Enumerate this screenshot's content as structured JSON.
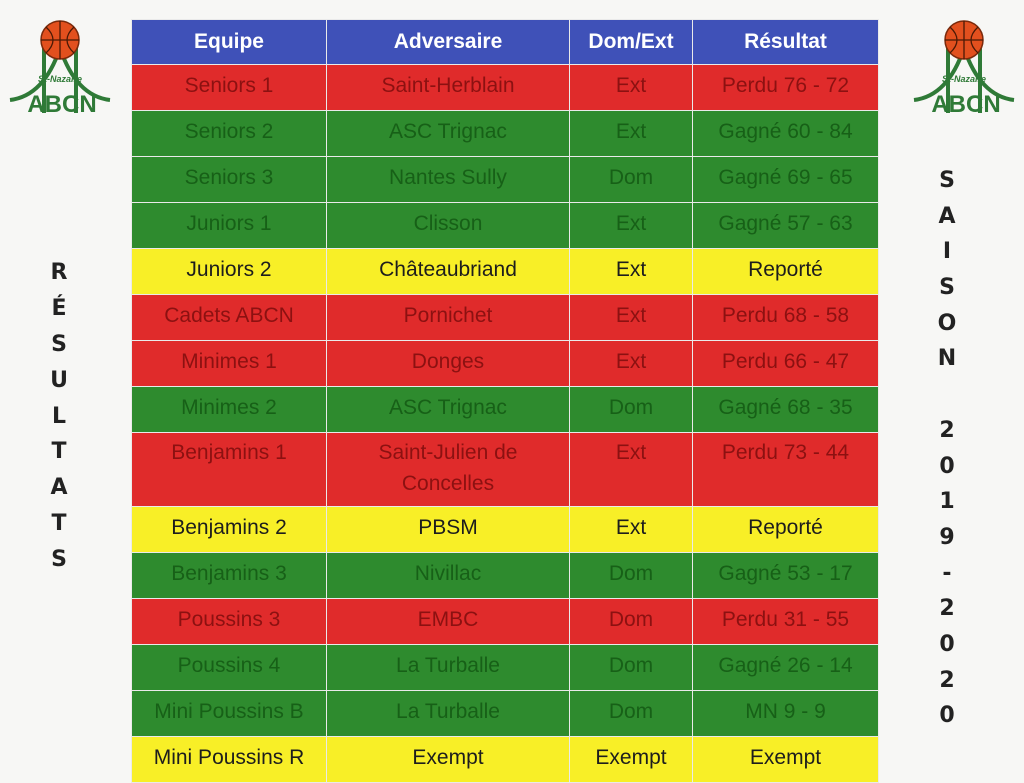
{
  "logo": {
    "text_top": "St-Nazaire",
    "text_bottom": "ABCN"
  },
  "left_vertical": [
    "R",
    "É",
    "S",
    "U",
    "L",
    "T",
    "A",
    "T",
    "S"
  ],
  "right_vertical": [
    "S",
    "A",
    "I",
    "S",
    "O",
    "N",
    "",
    "2",
    "0",
    "1",
    "9",
    "-",
    "2",
    "0",
    "2",
    "0"
  ],
  "table": {
    "headers": [
      "Equipe",
      "Adversaire",
      "Dom/Ext",
      "Résultat"
    ],
    "rows": [
      {
        "status": "red",
        "equipe": "Seniors 1",
        "adversaire": "Saint-Herblain",
        "lieu": "Ext",
        "resultat": "Perdu 76 - 72"
      },
      {
        "status": "green",
        "equipe": "Seniors 2",
        "adversaire": "ASC Trignac",
        "lieu": "Ext",
        "resultat": "Gagné 60 - 84"
      },
      {
        "status": "green",
        "equipe": "Seniors 3",
        "adversaire": "Nantes Sully",
        "lieu": "Dom",
        "resultat": "Gagné 69 - 65"
      },
      {
        "status": "green",
        "equipe": "Juniors 1",
        "adversaire": "Clisson",
        "lieu": "Ext",
        "resultat": "Gagné 57 - 63"
      },
      {
        "status": "yellow",
        "equipe": "Juniors 2",
        "adversaire": "Châteaubriand",
        "lieu": "Ext",
        "resultat": "Reporté"
      },
      {
        "status": "red",
        "equipe": "Cadets ABCN",
        "adversaire": "Pornichet",
        "lieu": "Ext",
        "resultat": "Perdu 68 - 58"
      },
      {
        "status": "red",
        "equipe": "Minimes 1",
        "adversaire": "Donges",
        "lieu": "Ext",
        "resultat": "Perdu 66 -  47"
      },
      {
        "status": "green",
        "equipe": "Minimes 2",
        "adversaire": "ASC Trignac",
        "lieu": "Dom",
        "resultat": "Gagné 68 - 35"
      },
      {
        "status": "red",
        "equipe": "Benjamins 1",
        "adversaire_line1": "Saint-Julien de",
        "adversaire_line2": "Concelles",
        "lieu": "Ext",
        "resultat": "Perdu 73 - 44"
      },
      {
        "status": "yellow",
        "equipe": "Benjamins 2",
        "adversaire": "PBSM",
        "lieu": "Ext",
        "resultat": "Reporté"
      },
      {
        "status": "green",
        "equipe": "Benjamins 3",
        "adversaire": "Nivillac",
        "lieu": "Dom",
        "resultat": "Gagné 53 - 17"
      },
      {
        "status": "red",
        "equipe": "Poussins 3",
        "adversaire": "EMBC",
        "lieu": "Dom",
        "resultat": "Perdu 31 - 55"
      },
      {
        "status": "green",
        "equipe": "Poussins 4",
        "adversaire": "La Turballe",
        "lieu": "Dom",
        "resultat": "Gagné 26 - 14"
      },
      {
        "status": "green",
        "equipe": "Mini Poussins B",
        "adversaire": "La Turballe",
        "lieu": "Dom",
        "resultat": "MN  9 - 9"
      },
      {
        "status": "yellow",
        "equipe": "Mini Poussins R",
        "adversaire": "Exempt",
        "lieu": "Exempt",
        "resultat": "Exempt"
      }
    ]
  },
  "colors": {
    "header": "#3f51b8",
    "red": "#e02b2b",
    "green": "#2e8b2e",
    "yellow": "#f8ef27",
    "logo_green": "#2f7a37",
    "ball_orange": "#e2501e"
  }
}
